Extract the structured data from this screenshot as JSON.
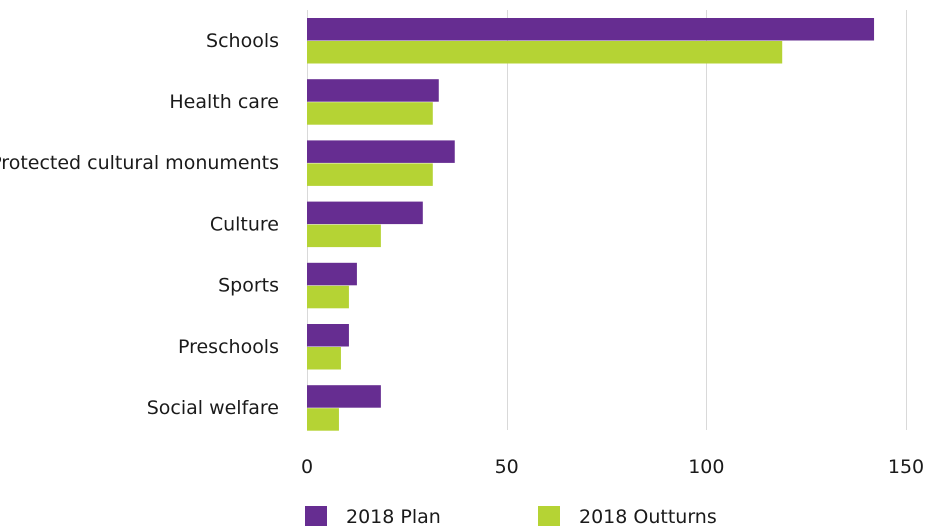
{
  "chart_data": {
    "type": "bar",
    "orientation": "horizontal",
    "categories": [
      "Schools",
      "Health care",
      "Protected cultural monuments",
      "Culture",
      "Sports",
      "Preschools",
      "Social welfare"
    ],
    "series": [
      {
        "name": "2018 Plan",
        "color": "#662d91",
        "values": [
          142,
          33,
          37,
          29,
          12.5,
          10.5,
          18.5
        ]
      },
      {
        "name": "2018 Outturns",
        "color": "#b5d334",
        "values": [
          119,
          31.5,
          31.5,
          18.5,
          10.5,
          8.5,
          8
        ]
      }
    ],
    "xlim": [
      0,
      150
    ],
    "xticks": [
      0,
      50,
      100,
      150
    ],
    "grid": true,
    "legend_position": "bottom"
  }
}
